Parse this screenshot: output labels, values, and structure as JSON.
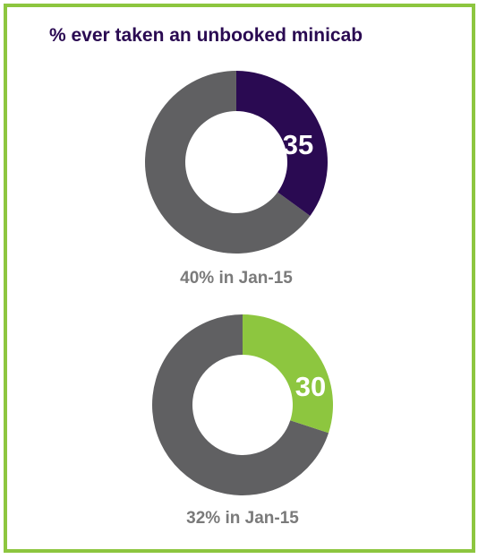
{
  "title": "% ever taken an unbooked minicab",
  "chart_data": [
    {
      "type": "pie",
      "value": 35,
      "max": 100,
      "value_label": "35",
      "caption": "40% in Jan-15",
      "highlight_color": "#2A0A52",
      "remainder_color": "#606062"
    },
    {
      "type": "pie",
      "value": 30,
      "max": 100,
      "value_label": "30",
      "caption": "32% in Jan-15",
      "highlight_color": "#8DC63F",
      "remainder_color": "#606062"
    }
  ],
  "colors": {
    "border": "#8DC63F",
    "title": "#2A0A52",
    "caption": "#7A7A7A"
  }
}
